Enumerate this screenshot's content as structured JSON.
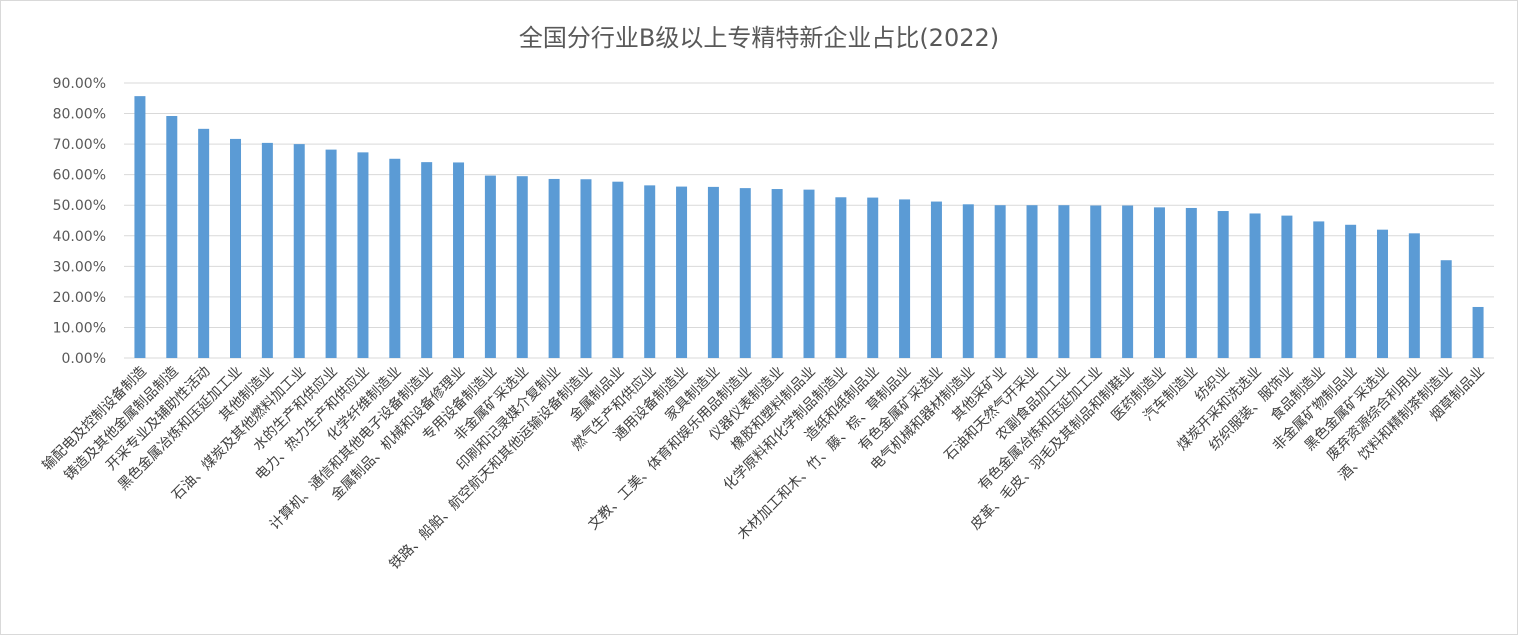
{
  "chart_data": {
    "type": "bar",
    "title": "全国分行业B级以上专精特新企业占比(2022)",
    "xlabel": "",
    "ylabel": "",
    "ylim": [
      0,
      90
    ],
    "yticks": [
      "0.00%",
      "10.00%",
      "20.00%",
      "30.00%",
      "40.00%",
      "50.00%",
      "60.00%",
      "70.00%",
      "80.00%",
      "90.00%"
    ],
    "grid": true,
    "legend": "none",
    "color": "#5b9bd5",
    "categories": [
      "输配电及控制设备制造",
      "铸造及其他金属制品制造",
      "开采专业及辅助性活动",
      "黑色金属冶炼和压延加工业",
      "其他制造业",
      "石油、煤炭及其他燃料加工业",
      "水的生产和供应业",
      "电力、热力生产和供应业",
      "化学纤维制造业",
      "计算机、通信和其他电子设备制造业",
      "金属制品、机械和设备修理业",
      "专用设备制造业",
      "非金属矿采选业",
      "印刷和记录媒介复制业",
      "铁路、船舶、航空航天和其他运输设备制造业",
      "金属制品业",
      "燃气生产和供应业",
      "通用设备制造业",
      "家具制造业",
      "文教、工美、体育和娱乐用品制造业",
      "仪器仪表制造业",
      "橡胶和塑料制品业",
      "化学原料和化学制品制造业",
      "造纸和纸制品业",
      "木材加工和木、竹、藤、棕、草制品业",
      "有色金属矿采选业",
      "电气机械和器材制造业",
      "其他采矿业",
      "石油和天然气开采业",
      "农副食品加工业",
      "有色金属冶炼和压延加工业",
      "皮革、毛皮、羽毛及其制品和制鞋业",
      "医药制造业",
      "汽车制造业",
      "纺织业",
      "煤炭开采和洗选业",
      "纺织服装、服饰业",
      "食品制造业",
      "非金属矿物制品业",
      "黑色金属矿采选业",
      "废弃资源综合利用业",
      "酒、饮料和精制茶制造业",
      "烟草制品业"
    ],
    "values": [
      85.7,
      79.2,
      75.0,
      71.7,
      70.4,
      70.0,
      68.2,
      67.3,
      65.2,
      64.1,
      64.0,
      59.7,
      59.5,
      58.6,
      58.5,
      57.7,
      56.5,
      56.1,
      56.0,
      55.6,
      55.3,
      55.1,
      52.6,
      52.5,
      51.9,
      51.2,
      50.3,
      50.0,
      50.0,
      50.0,
      49.9,
      49.9,
      49.3,
      49.1,
      48.1,
      47.3,
      46.6,
      44.7,
      43.6,
      42.0,
      40.8,
      32.0,
      16.7
    ]
  }
}
